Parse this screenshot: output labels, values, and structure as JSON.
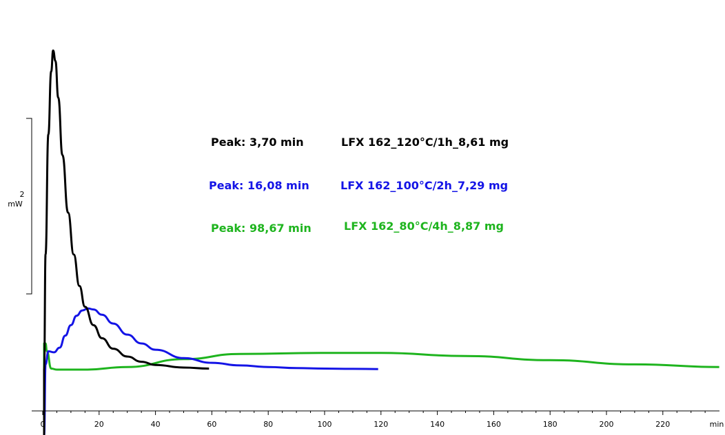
{
  "chart_data": {
    "type": "line",
    "title": "",
    "xlabel": "",
    "x_unit": "min",
    "xlim": [
      0,
      240
    ],
    "x_ticks": [
      0,
      20,
      40,
      60,
      80,
      100,
      120,
      140,
      160,
      180,
      200,
      220
    ],
    "x_tick_labels": [
      "0",
      "20",
      "40",
      "60",
      "80",
      "100",
      "120",
      "140",
      "160",
      "180",
      "200",
      "220"
    ],
    "scale_bar": {
      "value": "2",
      "unit": "mW"
    },
    "grid": false,
    "series": [
      {
        "color": "#000000",
        "x": [
          0.5,
          1,
          2,
          3,
          3.7,
          4.5,
          5.5,
          7,
          9,
          11,
          13,
          15,
          18,
          21,
          25,
          30,
          35,
          40,
          50,
          59
        ],
        "y": [
          0,
          2.2,
          4.5,
          5.7,
          6.1,
          5.9,
          5.2,
          4.1,
          3.0,
          2.2,
          1.6,
          1.2,
          0.85,
          0.6,
          0.4,
          0.25,
          0.15,
          0.09,
          0.04,
          0.02
        ]
      },
      {
        "color": "#1414e6",
        "x": [
          1,
          2,
          4,
          6,
          8,
          10,
          12,
          14,
          16.08,
          18,
          21,
          25,
          30,
          35,
          40,
          50,
          60,
          70,
          80,
          90,
          100,
          110,
          119
        ],
        "y": [
          0.1,
          0.35,
          0.33,
          0.42,
          0.65,
          0.85,
          1.03,
          1.13,
          1.17,
          1.15,
          1.05,
          0.88,
          0.67,
          0.5,
          0.38,
          0.22,
          0.13,
          0.08,
          0.05,
          0.03,
          0.02,
          0.015,
          0.01
        ]
      },
      {
        "color": "#1eb41e",
        "x": [
          0.5,
          1,
          1.5,
          3,
          5,
          8,
          15,
          30,
          50,
          70,
          98.67,
          120,
          150,
          180,
          210,
          240
        ],
        "y": [
          0.5,
          0.5,
          0.35,
          0.02,
          0.0,
          0.0,
          0.0,
          0.05,
          0.2,
          0.3,
          0.32,
          0.32,
          0.26,
          0.18,
          0.1,
          0.05
        ]
      }
    ],
    "annotations": [
      {
        "peak": "Peak: 3,70 min",
        "label": "LFX 162_120°C/1h_8,61 mg",
        "color": "#000000"
      },
      {
        "peak": "Peak: 16,08  min",
        "label": "LFX 162_100°C/2h_7,29 mg",
        "color": "#1414e6"
      },
      {
        "peak": "Peak: 98,67 min",
        "label": "LFX 162_80°C/4h_8,87 mg",
        "color": "#1eb41e"
      }
    ]
  }
}
